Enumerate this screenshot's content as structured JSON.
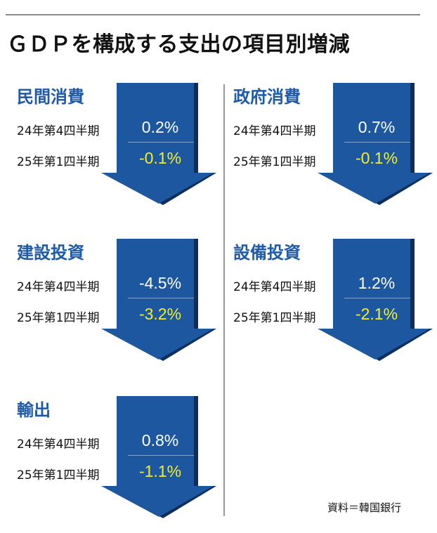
{
  "title": "ＧＤＰを構成する支出の項目別増減",
  "source": "資料＝韓国銀行",
  "colors": {
    "accent": "#1f5aa6",
    "arrow_fill": "#1c57a0",
    "arrow_shadow": "#0f2e5c",
    "highlight_value": "#f2ee2e"
  },
  "chart_data": {
    "type": "table",
    "periods": [
      "24年第4四半期",
      "25年第1四半期"
    ],
    "unit": "%",
    "items": [
      {
        "name": "民間消費",
        "values": [
          0.2,
          -0.1
        ],
        "labels": [
          "0.2%",
          "-0.1%"
        ]
      },
      {
        "name": "政府消費",
        "values": [
          0.7,
          -0.1
        ],
        "labels": [
          "0.7%",
          "-0.1%"
        ]
      },
      {
        "name": "建設投資",
        "values": [
          -4.5,
          -3.2
        ],
        "labels": [
          "-4.5%",
          "-3.2%"
        ]
      },
      {
        "name": "設備投資",
        "values": [
          1.2,
          -2.1
        ],
        "labels": [
          "1.2%",
          "-2.1%"
        ]
      },
      {
        "name": "輸出",
        "values": [
          0.8,
          -1.1
        ],
        "labels": [
          "0.8%",
          "-1.1%"
        ]
      }
    ]
  }
}
